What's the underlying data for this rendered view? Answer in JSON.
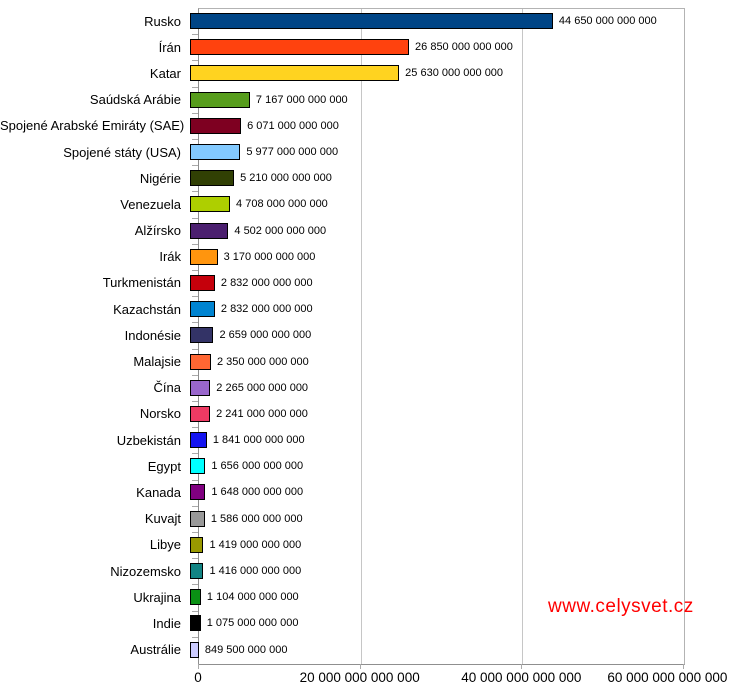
{
  "chart_data": {
    "type": "bar",
    "orientation": "horizontal",
    "title": "",
    "xlabel": "",
    "ylabel": "",
    "xlim": [
      0,
      60000000000000
    ],
    "grid": true,
    "x_tick_values": [
      0,
      20000000000000,
      40000000000000,
      60000000000000
    ],
    "x_tick_labels": [
      "0",
      "20 000 000 000 000",
      "40 000 000 000 000",
      "60 000 000 000 000"
    ],
    "categories": [
      "Rusko",
      "Írán",
      "Katar",
      "Saúdská Arábie",
      "Spojené Arabské Emiráty (SAE)",
      "Spojené státy (USA)",
      "Nigérie",
      "Venezuela",
      "Alžírsko",
      "Irák",
      "Turkmenistán",
      "Kazachstán",
      "Indonésie",
      "Malajsie",
      "Čína",
      "Norsko",
      "Uzbekistán",
      "Egypt",
      "Kanada",
      "Kuvajt",
      "Libye",
      "Nizozemsko",
      "Ukrajina",
      "Indie",
      "Austrálie"
    ],
    "values": [
      44650000000000,
      26850000000000,
      25630000000000,
      7167000000000,
      6071000000000,
      5977000000000,
      5210000000000,
      4708000000000,
      4502000000000,
      3170000000000,
      2832000000000,
      2832000000000,
      2659000000000,
      2350000000000,
      2265000000000,
      2241000000000,
      1841000000000,
      1656000000000,
      1648000000000,
      1586000000000,
      1419000000000,
      1416000000000,
      1104000000000,
      1075000000000,
      849500000000
    ],
    "value_labels": [
      "44 650 000 000 000",
      "26 850 000 000 000",
      "25 630 000 000 000",
      "7 167 000 000 000",
      "6 071 000 000 000",
      "5 977 000 000 000",
      "5 210 000 000 000",
      "4 708 000 000 000",
      "4 502 000 000 000",
      "3 170 000 000 000",
      "2 832 000 000 000",
      "2 832 000 000 000",
      "2 659 000 000 000",
      "2 350 000 000 000",
      "2 265 000 000 000",
      "2 241 000 000 000",
      "1 841 000 000 000",
      "1 656 000 000 000",
      "1 648 000 000 000",
      "1 586 000 000 000",
      "1 419 000 000 000",
      "1 416 000 000 000",
      "1 104 000 000 000",
      "1 075 000 000 000",
      "849 500 000 000"
    ],
    "bar_colors": [
      "#004586",
      "#FF420E",
      "#FFD320",
      "#579D1C",
      "#7E0021",
      "#83CAFF",
      "#314004",
      "#AECF00",
      "#4B1F6F",
      "#FF950E",
      "#C5000B",
      "#0084D1",
      "#333366",
      "#FF6633",
      "#9966CC",
      "#EE3A63",
      "#1414F0",
      "#00FFFF",
      "#800080",
      "#999999",
      "#999900",
      "#128484",
      "#0A9114",
      "#000000",
      "#CCCCFF"
    ],
    "bar_border_color": "#000000",
    "legend": "none"
  },
  "watermark": {
    "text": "www.celysvet.cz",
    "color": "#FF0000"
  }
}
